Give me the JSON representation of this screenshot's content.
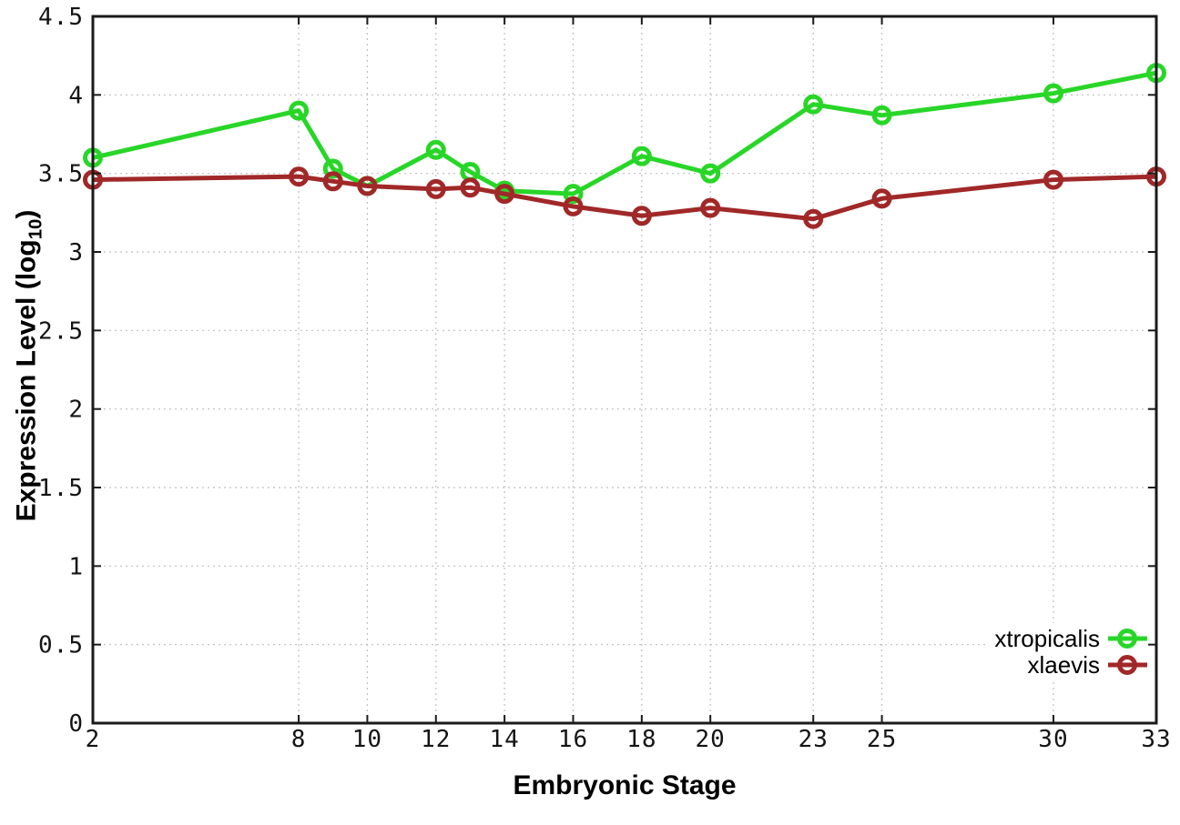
{
  "labels": {
    "x_axis_title": "Embryonic Stage",
    "y_axis_title_prefix": "Expression Level (log",
    "y_axis_title_sub": "10",
    "y_axis_title_suffix": ")"
  },
  "colors": {
    "xtropicalis": "#28d628",
    "xlaevis": "#a12828",
    "grid": "#bfbfbf",
    "axis": "#1a1a1a",
    "background": "#ffffff"
  },
  "chart_data": {
    "type": "line",
    "title": "",
    "xlabel": "Embryonic Stage",
    "ylabel": "Expression Level (log10)",
    "xlim": [
      2,
      33
    ],
    "ylim": [
      0,
      4.5
    ],
    "grid": true,
    "legend_position": "inside-right-bottom",
    "x_ticks": [
      2,
      8,
      10,
      12,
      14,
      16,
      18,
      20,
      23,
      25,
      30,
      33
    ],
    "y_ticks": [
      0,
      0.5,
      1,
      1.5,
      2,
      2.5,
      3,
      3.5,
      4,
      4.5
    ],
    "x": [
      2,
      8,
      9,
      10,
      12,
      13,
      14,
      16,
      18,
      20,
      23,
      25,
      30,
      33
    ],
    "series": [
      {
        "name": "xtropicalis",
        "color": "#28d628",
        "marker": "open-circle",
        "values": [
          3.6,
          3.9,
          3.53,
          3.42,
          3.65,
          3.51,
          3.39,
          3.37,
          3.61,
          3.5,
          3.94,
          3.87,
          4.01,
          4.14
        ]
      },
      {
        "name": "xlaevis",
        "color": "#a12828",
        "marker": "open-circle",
        "values": [
          3.46,
          3.48,
          3.45,
          3.42,
          3.4,
          3.41,
          3.37,
          3.29,
          3.23,
          3.28,
          3.21,
          3.34,
          3.46,
          3.48
        ]
      }
    ]
  }
}
